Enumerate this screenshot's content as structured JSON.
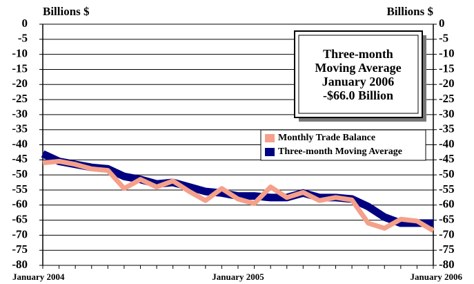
{
  "chart_data": {
    "type": "line",
    "y_label": "Billions $",
    "y2_label": "Billions $",
    "annotation": [
      "Three-month",
      "Moving Average",
      "January 2006",
      "-$66.0 Billion"
    ],
    "categories": [
      "January 2004",
      null,
      null,
      null,
      null,
      null,
      null,
      null,
      null,
      null,
      null,
      null,
      "January 2005",
      null,
      null,
      null,
      null,
      null,
      null,
      null,
      null,
      null,
      null,
      null,
      "January 2006"
    ],
    "series": [
      {
        "name": "Monthly Trade Balance",
        "color": "#f4a08a",
        "values": [
          -46,
          -45.5,
          -46.5,
          -48,
          -48.5,
          -54.5,
          -51.5,
          -54,
          -52,
          -55.5,
          -58.5,
          -54.5,
          -58,
          -59.5,
          -54,
          -57.5,
          -55.8,
          -58.5,
          -57.5,
          -58.3,
          -66,
          -67.7,
          -64.7,
          -65.3,
          -68.5
        ]
      },
      {
        "name": "Three-month Moving Average",
        "color": "#000080",
        "values": [
          -43,
          -45.5,
          -46.5,
          -47.5,
          -48,
          -50.5,
          -51.5,
          -53,
          -52.5,
          -54,
          -55.5,
          -56,
          -57,
          -57,
          -57.5,
          -57.5,
          -56,
          -57.5,
          -57.5,
          -58,
          -60.5,
          -64,
          -66,
          -66,
          -66
        ]
      }
    ],
    "ylim": [
      -80,
      0
    ],
    "yticks": [
      0,
      -5,
      -10,
      -15,
      -20,
      -25,
      -30,
      -35,
      -40,
      -45,
      -50,
      -55,
      -60,
      -65,
      -70,
      -75,
      -80
    ],
    "y2lim": [
      -80,
      0
    ],
    "y2ticks": [
      0,
      -5,
      -10,
      -15,
      -20,
      -25,
      -30,
      -35,
      -40,
      -45,
      -50,
      -55,
      -60,
      -65,
      -70,
      -75,
      -80
    ],
    "grid": true
  }
}
